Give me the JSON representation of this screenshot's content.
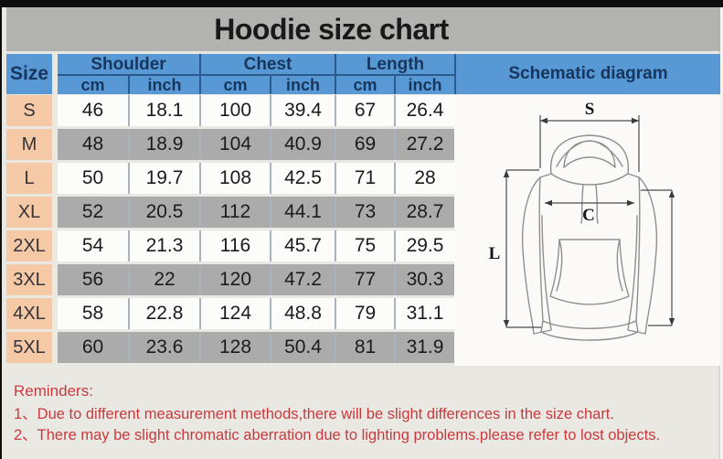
{
  "window": {
    "title": "Hoodie size chart"
  },
  "table": {
    "size_header": "Size",
    "groups": [
      "Shoulder",
      "Chest",
      "Length"
    ],
    "units": [
      "cm",
      "inch",
      "cm",
      "inch",
      "cm",
      "inch"
    ],
    "schematic_header": "Schematic diagram"
  },
  "chart_data": {
    "type": "table",
    "title": "Hoodie size chart",
    "columns": [
      "Size",
      "Shoulder cm",
      "Shoulder inch",
      "Chest cm",
      "Chest inch",
      "Length cm",
      "Length inch"
    ],
    "rows": [
      [
        "S",
        46,
        18.1,
        100,
        39.4,
        67,
        26.4
      ],
      [
        "M",
        48,
        18.9,
        104,
        40.9,
        69,
        27.2
      ],
      [
        "L",
        50,
        19.7,
        108,
        42.5,
        71,
        28
      ],
      [
        "XL",
        52,
        20.5,
        112,
        44.1,
        73,
        28.7
      ],
      [
        "2XL",
        54,
        21.3,
        116,
        45.7,
        75,
        29.5
      ],
      [
        "3XL",
        56,
        22,
        120,
        47.2,
        77,
        30.3
      ],
      [
        "4XL",
        58,
        22.8,
        124,
        48.8,
        79,
        31.1
      ],
      [
        "5XL",
        60,
        23.6,
        128,
        50.4,
        81,
        31.9
      ]
    ]
  },
  "schematic": {
    "labels": {
      "shoulder": "S",
      "chest": "C",
      "length": "L"
    }
  },
  "reminders": {
    "heading": "Reminders:",
    "items": [
      "1、Due to different measurement methods,there will be slight differences in the size chart.",
      "2、There may be slight chromatic aberration due to lighting problems.please refer to lost objects."
    ]
  },
  "colors": {
    "header_blue": "#5898d4",
    "header_line_navy": "#2a5a8e",
    "header_text_navy": "#16365e",
    "size_cell_peach": "#f5c8a6",
    "row_alt_gray": "#ababab",
    "title_band_gray": "#b2b2b1",
    "reminder_red": "#c83a3d"
  }
}
